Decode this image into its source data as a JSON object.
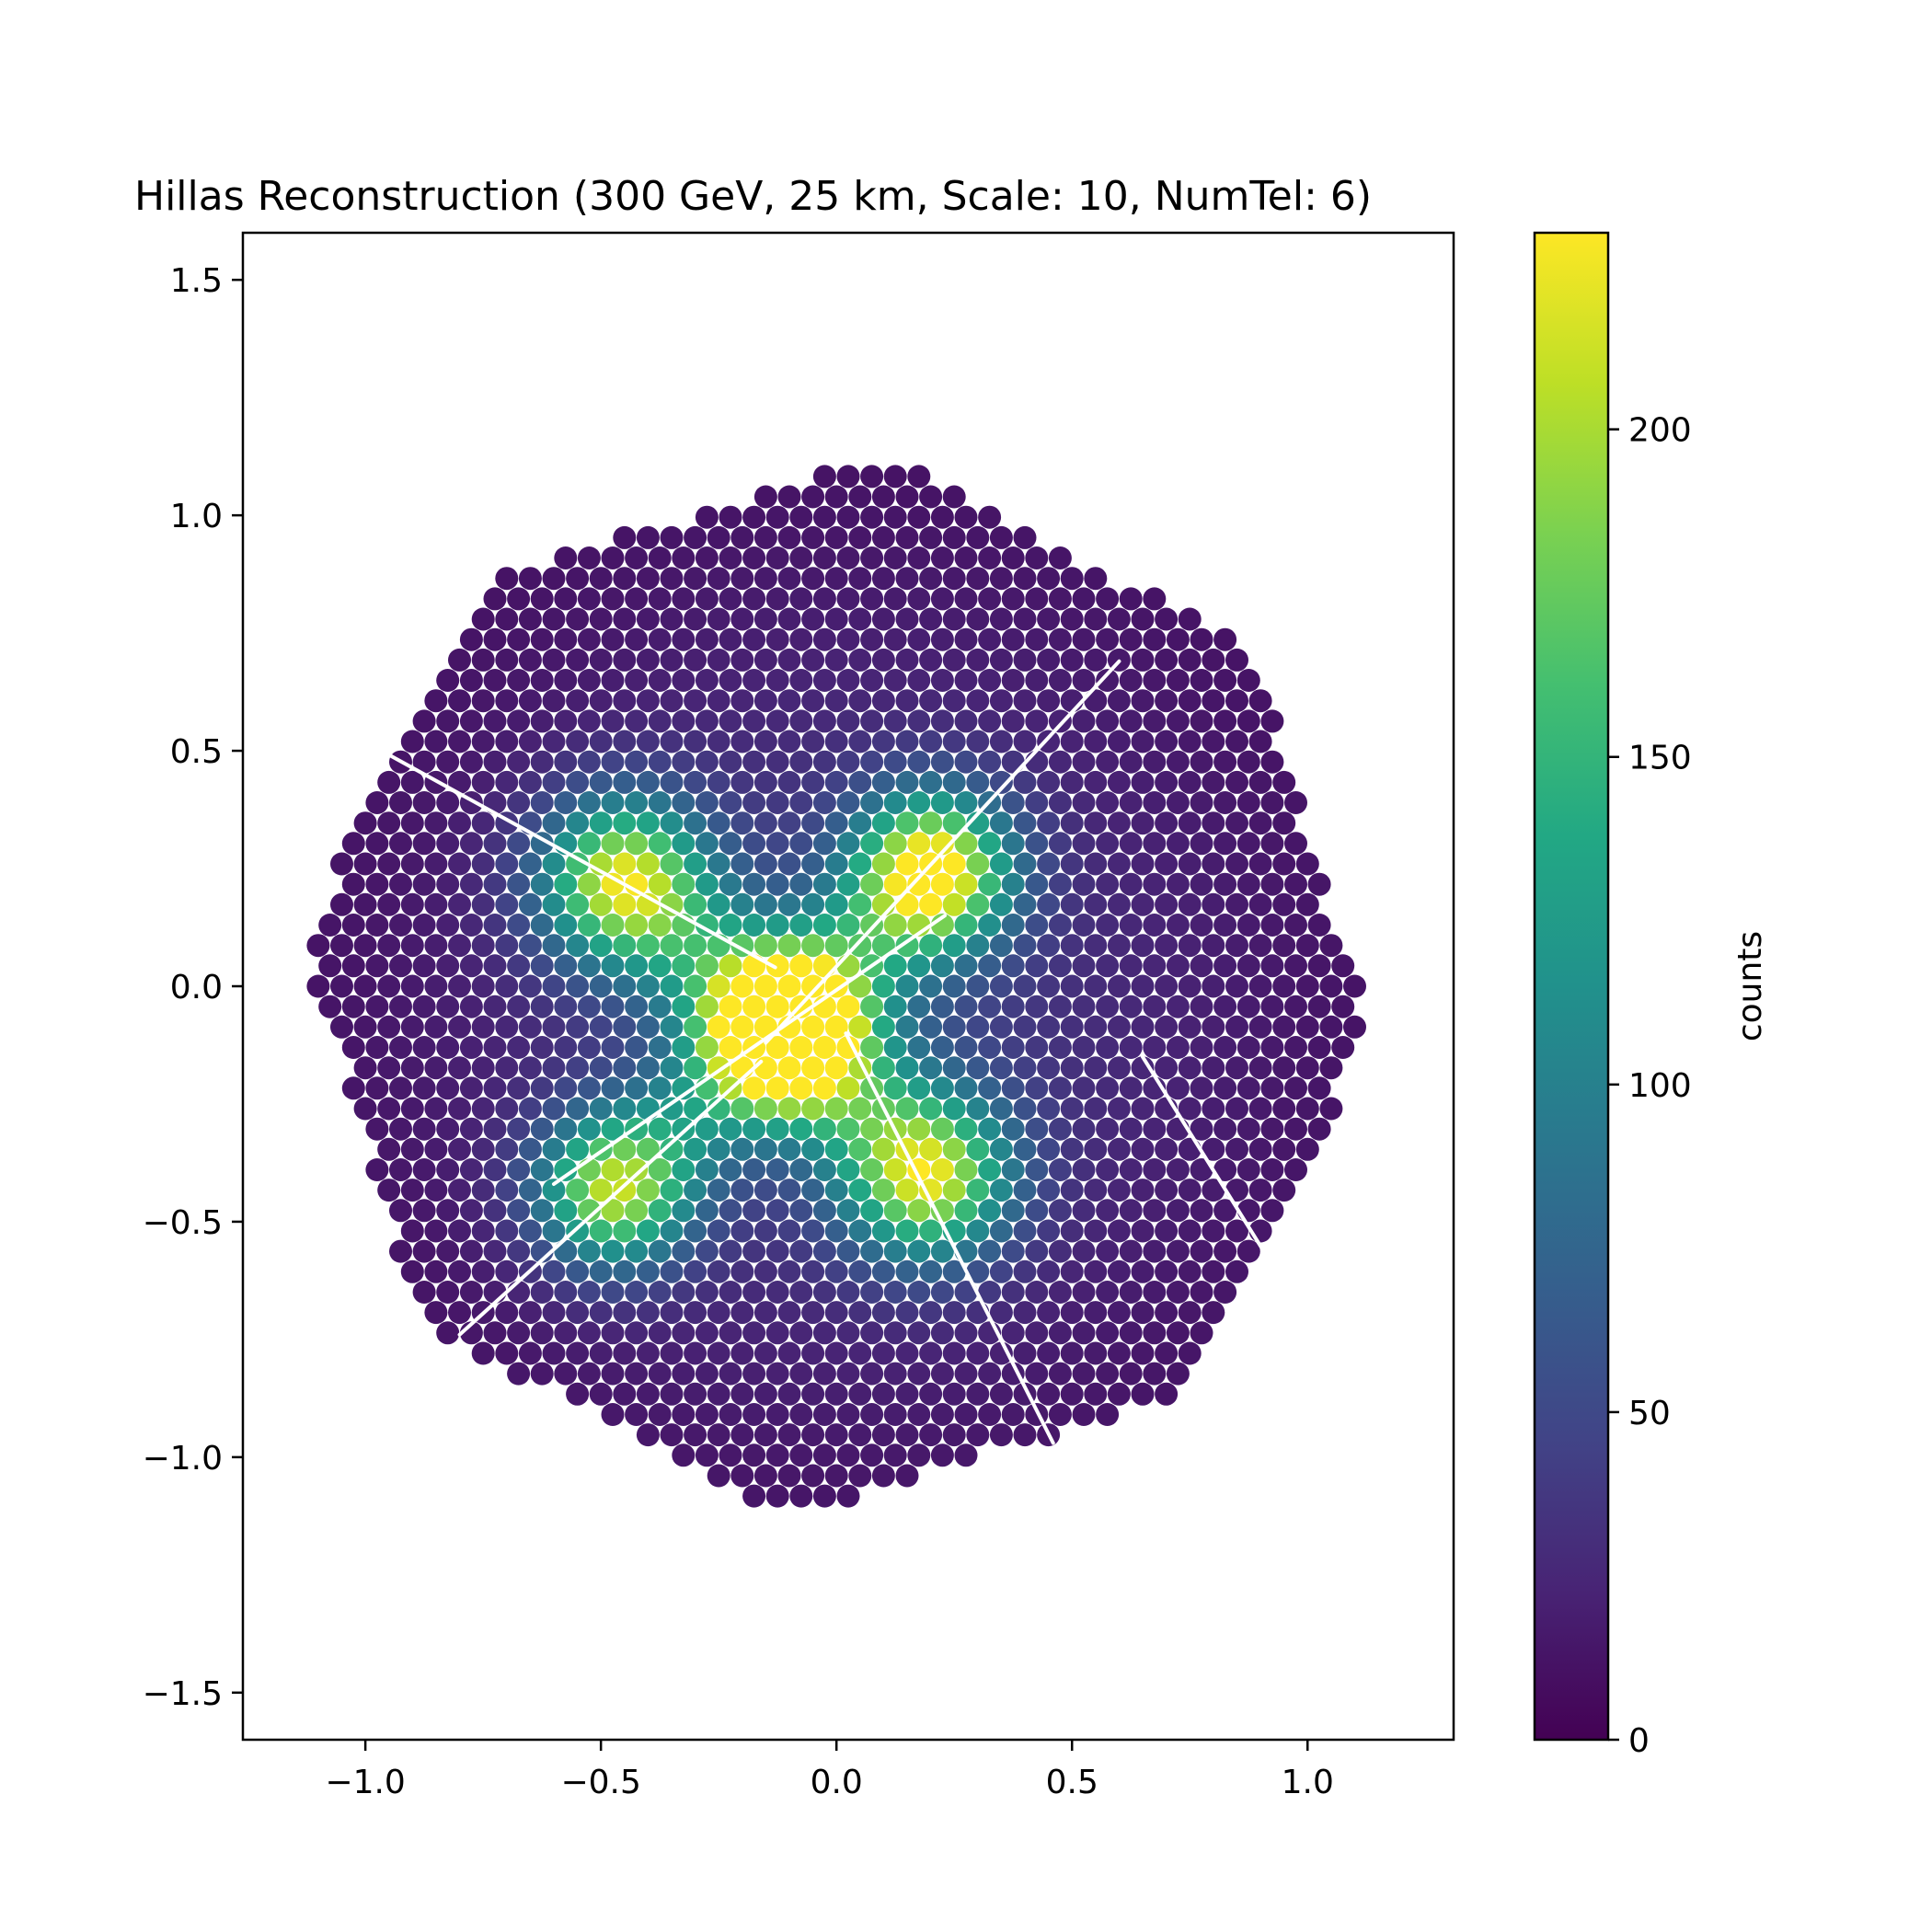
{
  "chart_data": {
    "type": "scatter",
    "title": "Hillas Reconstruction (300 GeV, 25 km, Scale: 10, NumTel: 6)",
    "xlim": [
      -1.26,
      1.31
    ],
    "ylim": [
      -1.6,
      1.6
    ],
    "x_ticks": [
      {
        "value": -1.0,
        "label": "−1.0"
      },
      {
        "value": -0.5,
        "label": "−0.5"
      },
      {
        "value": 0.0,
        "label": "0.0"
      },
      {
        "value": 0.5,
        "label": "0.5"
      },
      {
        "value": 1.0,
        "label": "1.0"
      }
    ],
    "y_ticks": [
      {
        "value": 1.5,
        "label": "1.5"
      },
      {
        "value": 1.0,
        "label": "1.0"
      },
      {
        "value": 0.5,
        "label": "0.5"
      },
      {
        "value": 0.0,
        "label": "0.0"
      },
      {
        "value": -0.5,
        "label": "−0.5"
      },
      {
        "value": -1.0,
        "label": "−1.0"
      },
      {
        "value": -1.5,
        "label": "−1.5"
      }
    ],
    "grid": false,
    "camera": {
      "pixel_pitch": 0.05,
      "boundary_radius_x": 1.13,
      "boundary_radius_y": 1.12,
      "center": [
        0.0,
        0.0
      ]
    },
    "colorbar": {
      "label": "counts",
      "colormap": "viridis",
      "range": [
        0,
        230
      ],
      "ticks": [
        {
          "value": 0,
          "label": "0"
        },
        {
          "value": 50,
          "label": "50"
        },
        {
          "value": 100,
          "label": "100"
        },
        {
          "value": 150,
          "label": "150"
        },
        {
          "value": 200,
          "label": "200"
        }
      ]
    },
    "intensity_model": {
      "background": 8,
      "blobs": [
        {
          "x": -0.11,
          "y": -0.09,
          "sigma": 0.13,
          "amp": 220
        },
        {
          "x": 0.2,
          "y": 0.24,
          "sigma": 0.12,
          "amp": 180
        },
        {
          "x": -0.45,
          "y": 0.22,
          "sigma": 0.13,
          "amp": 155
        },
        {
          "x": 0.19,
          "y": -0.4,
          "sigma": 0.13,
          "amp": 150
        },
        {
          "x": -0.47,
          "y": -0.43,
          "sigma": 0.12,
          "amp": 140
        }
      ],
      "arms": [
        {
          "from": [
            -0.11,
            -0.09
          ],
          "to": [
            0.2,
            0.24
          ],
          "sigma": 0.09,
          "amp": 45
        },
        {
          "from": [
            -0.11,
            -0.09
          ],
          "to": [
            -0.45,
            0.22
          ],
          "sigma": 0.09,
          "amp": 45
        },
        {
          "from": [
            -0.11,
            -0.09
          ],
          "to": [
            0.19,
            -0.4
          ],
          "sigma": 0.09,
          "amp": 45
        },
        {
          "from": [
            -0.11,
            -0.09
          ],
          "to": [
            -0.47,
            -0.43
          ],
          "sigma": 0.09,
          "amp": 45
        }
      ],
      "halo": {
        "x": 0.0,
        "y": -0.05,
        "sigma": 0.55,
        "amp": 35
      }
    },
    "hillas_lines": [
      {
        "x1": -1.02,
        "y1": 0.53,
        "x2": -0.13,
        "y2": 0.04
      },
      {
        "x1": 0.6,
        "y1": 0.69,
        "x2": -0.15,
        "y2": -0.12
      },
      {
        "x1": 0.23,
        "y1": 0.15,
        "x2": -0.6,
        "y2": -0.42
      },
      {
        "x1": -0.16,
        "y1": -0.16,
        "x2": -0.8,
        "y2": -0.74
      },
      {
        "x1": 0.02,
        "y1": -0.1,
        "x2": 0.46,
        "y2": -0.97
      },
      {
        "x1": 0.65,
        "y1": -0.15,
        "x2": 0.98,
        "y2": -0.68
      }
    ],
    "line_color": "#ffffff"
  }
}
